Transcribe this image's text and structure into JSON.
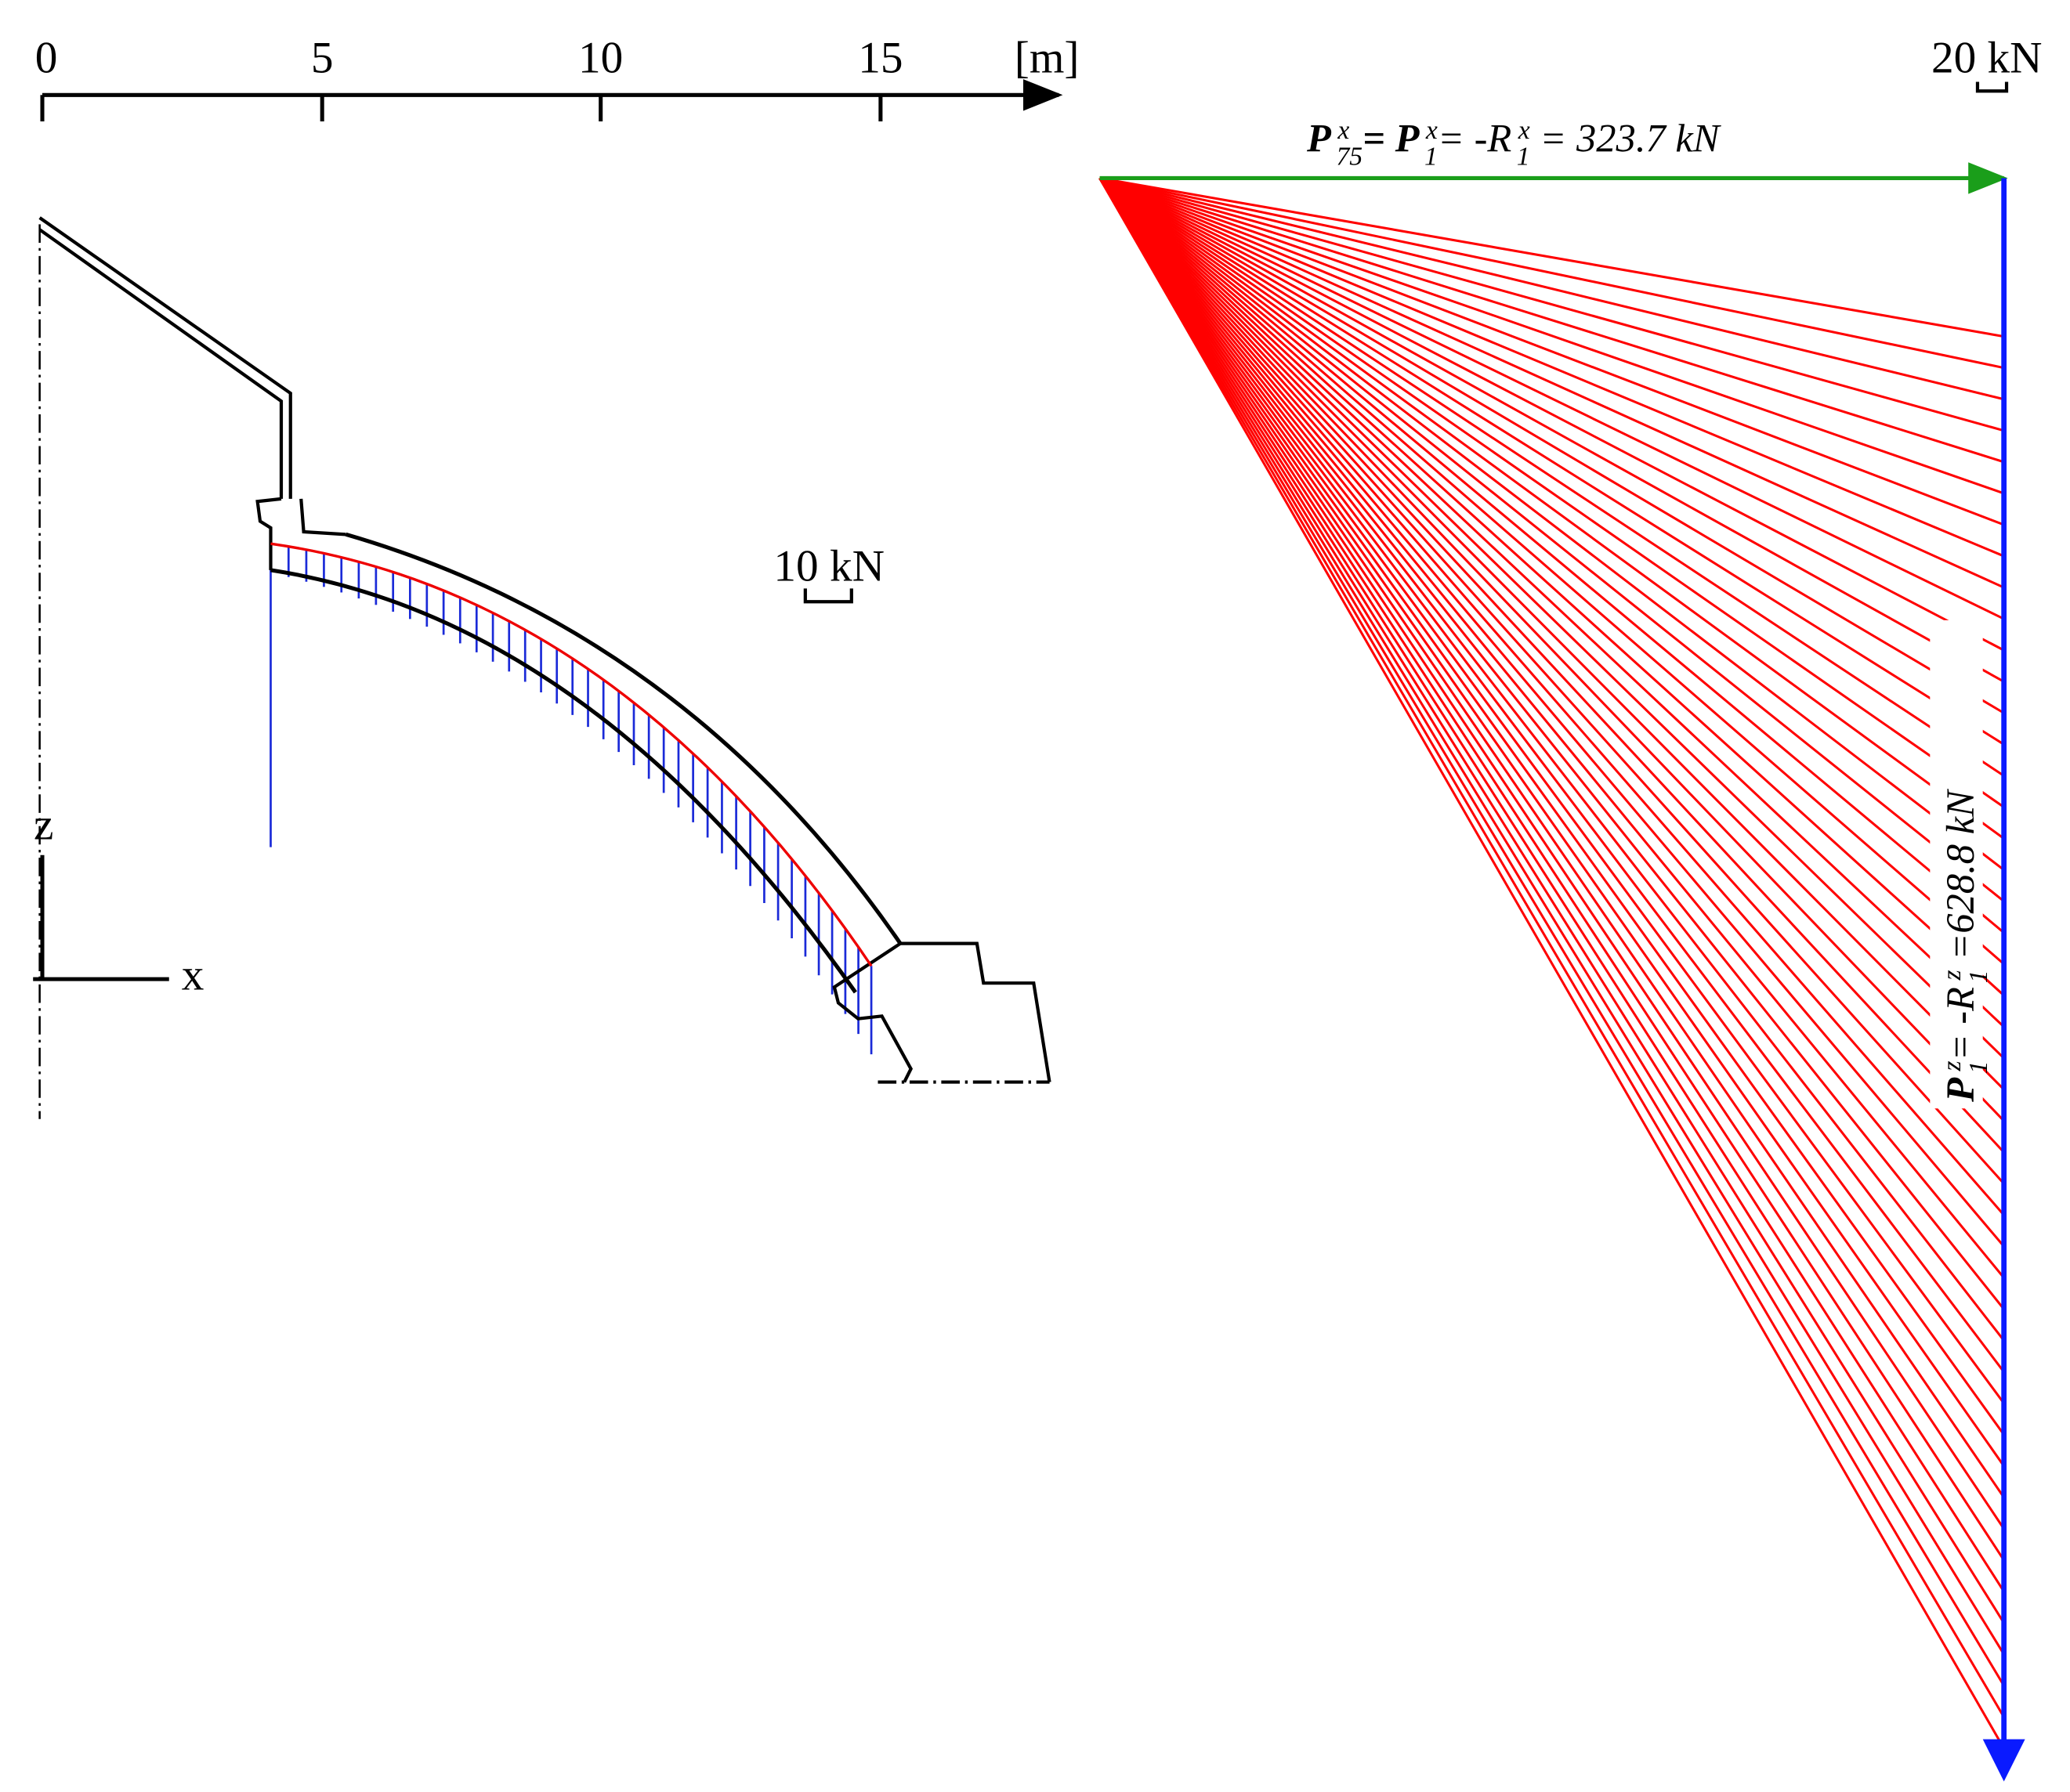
{
  "scale_bar": {
    "ticks": [
      "0",
      "5",
      "10",
      "15"
    ],
    "unit": "[m]"
  },
  "axes": {
    "z": "z",
    "x": "x"
  },
  "force_scale_left": "10 kN",
  "force_scale_right": "20 kN",
  "horizontal_force": {
    "parts": [
      "P",
      "x",
      "75",
      "= ",
      "P",
      "x",
      "1",
      "= -R",
      "x",
      "1",
      " = 323.7 kN"
    ]
  },
  "vertical_force": {
    "parts": [
      "P",
      "z",
      "1",
      "= -R",
      "z",
      "1",
      " =628.8 kN"
    ]
  }
}
